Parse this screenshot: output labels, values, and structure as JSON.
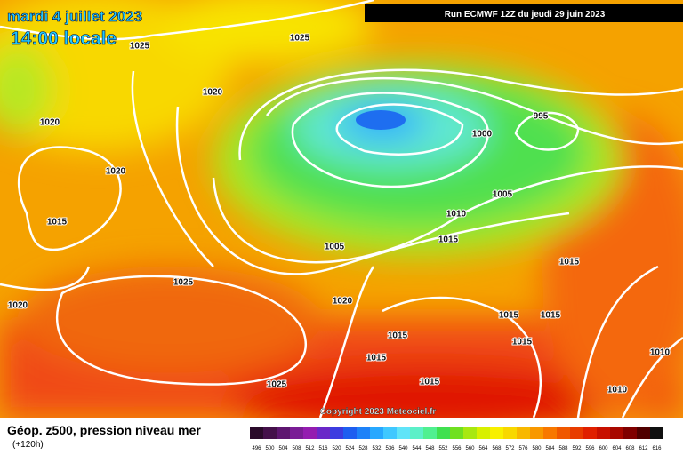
{
  "header": {
    "title_line1": "mardi 4 juillet 2023",
    "title_line2": "14:00 locale",
    "run": "Run ECMWF 12Z du jeudi 29 juin 2023"
  },
  "footer": {
    "title": "Géop. z500, pression niveau mer",
    "subtitle": "(+120h)",
    "copyright": "Copyright 2023 Meteociel.fr"
  },
  "isobar_labels": [
    "1025",
    "1025",
    "1020",
    "1020",
    "1020",
    "1015",
    "1025",
    "1020",
    "1020",
    "1000",
    "995",
    "1005",
    "1010",
    "1015",
    "1005",
    "1015",
    "1015",
    "1015",
    "1015",
    "1015",
    "1015",
    "1010",
    "1015",
    "1010",
    "1025"
  ],
  "legend": {
    "labels": [
      496,
      500,
      504,
      508,
      512,
      516,
      520,
      524,
      528,
      532,
      536,
      540,
      544,
      548,
      552,
      556,
      560,
      564,
      568,
      572,
      576,
      580,
      584,
      588,
      592,
      596,
      600,
      604,
      608,
      612,
      616
    ],
    "colors": [
      "#2a0a2a",
      "#44104a",
      "#5e1670",
      "#7a1c96",
      "#941cb0",
      "#6a28c8",
      "#3c3ce0",
      "#1e5ef0",
      "#1e82f8",
      "#28a8ff",
      "#40c8ff",
      "#60e4f8",
      "#5cf0c8",
      "#50f090",
      "#40e050",
      "#70e020",
      "#a8e810",
      "#d8f000",
      "#f8f000",
      "#f8d800",
      "#f8b800",
      "#f89800",
      "#f87800",
      "#f05800",
      "#e83c00",
      "#e02000",
      "#c81000",
      "#a80800",
      "#800000",
      "#500000",
      "#101010"
    ]
  }
}
